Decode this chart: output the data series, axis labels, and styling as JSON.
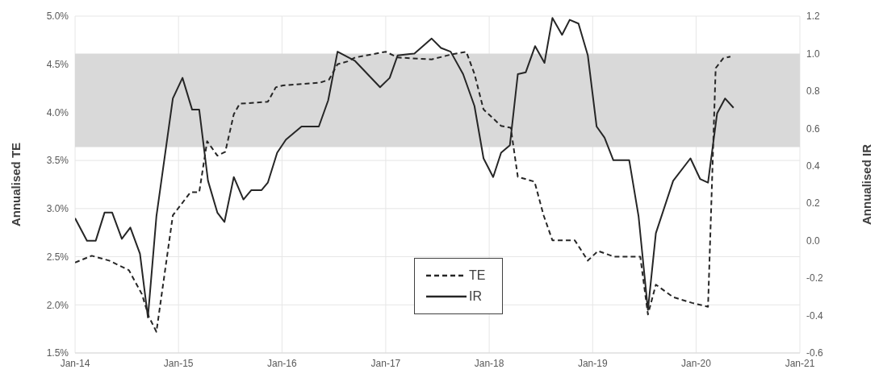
{
  "chart_data": {
    "type": "line",
    "xlabel": null,
    "ylabel": "Annualised TE",
    "y2label": "Annualised IR",
    "xlim": [
      "2014-01",
      "2021-01"
    ],
    "xticks": [
      {
        "value": "2014-01",
        "label": "Jan-14"
      },
      {
        "value": "2015-01",
        "label": "Jan-15"
      },
      {
        "value": "2016-01",
        "label": "Jan-16"
      },
      {
        "value": "2017-01",
        "label": "Jan-17"
      },
      {
        "value": "2018-01",
        "label": "Jan-18"
      },
      {
        "value": "2019-01",
        "label": "Jan-19"
      },
      {
        "value": "2020-01",
        "label": "Jan-20"
      },
      {
        "value": "2021-01",
        "label": "Jan-21"
      }
    ],
    "ylim": [
      1.5,
      5.0
    ],
    "yticks": [
      {
        "value": 1.5,
        "label": "1.5%"
      },
      {
        "value": 2.0,
        "label": "2.0%"
      },
      {
        "value": 2.5,
        "label": "2.5%"
      },
      {
        "value": 3.0,
        "label": "3.0%"
      },
      {
        "value": 3.5,
        "label": "3.5%"
      },
      {
        "value": 4.0,
        "label": "4.0%"
      },
      {
        "value": 4.5,
        "label": "4.5%"
      },
      {
        "value": 5.0,
        "label": "5.0%"
      }
    ],
    "y2lim": [
      -0.6,
      1.2
    ],
    "y2ticks": [
      {
        "value": -0.6,
        "label": "-0.6"
      },
      {
        "value": -0.4,
        "label": "-0.4"
      },
      {
        "value": -0.2,
        "label": "-0.2"
      },
      {
        "value": 0,
        "label": "0.0"
      },
      {
        "value": 0.2,
        "label": "0.2"
      },
      {
        "value": 0.4,
        "label": "0.4"
      },
      {
        "value": 0.6,
        "label": "0.6"
      },
      {
        "value": 0.8,
        "label": "0.8"
      },
      {
        "value": 1.0,
        "label": "1.0"
      },
      {
        "value": 1.2,
        "label": "1.2"
      }
    ],
    "grid": true,
    "legend": "bottom",
    "marker": "none",
    "bands": [
      {
        "axis": "y2",
        "from": 0.5,
        "to": 1.0,
        "color": "#d9d9d9"
      }
    ],
    "series": [
      {
        "name": "TE",
        "color": "#262626",
        "line_style": "dashed",
        "x": [
          "2014-01-01",
          "2014-03-01",
          "2014-05-01",
          "2014-07-10",
          "2014-08-25",
          "2014-09-18",
          "2014-10-15",
          "2014-12-12",
          "2015-02-12",
          "2015-03-15",
          "2015-04-12",
          "2015-05-18",
          "2015-06-15",
          "2015-07-15",
          "2015-08-05",
          "2015-11-12",
          "2015-12-10",
          "2016-01-05",
          "2016-05-15",
          "2016-06-15",
          "2016-07-15",
          "2016-08-20",
          "2016-09-15",
          "2017-01-01",
          "2017-02-12",
          "2017-06-12",
          "2017-08-18",
          "2017-10-12",
          "2017-11-10",
          "2017-12-12",
          "2018-02-12",
          "2018-03-18",
          "2018-04-12",
          "2018-06-10",
          "2018-07-12",
          "2018-08-12",
          "2018-10-30",
          "2018-12-15",
          "2019-01-20",
          "2019-03-18",
          "2019-06-18",
          "2019-07-15",
          "2019-08-12",
          "2019-10-12",
          "2019-12-18",
          "2020-02-12",
          "2020-03-10",
          "2020-04-05",
          "2020-05-01"
        ],
        "values": [
          2.44,
          2.51,
          2.46,
          2.36,
          2.11,
          1.88,
          1.72,
          2.93,
          3.17,
          3.17,
          3.7,
          3.55,
          3.59,
          3.98,
          4.09,
          4.11,
          4.26,
          4.28,
          4.31,
          4.34,
          4.5,
          4.53,
          4.57,
          4.63,
          4.57,
          4.55,
          4.6,
          4.63,
          4.4,
          4.03,
          3.86,
          3.84,
          3.33,
          3.28,
          2.93,
          2.67,
          2.67,
          2.46,
          2.56,
          2.5,
          2.5,
          1.9,
          2.21,
          2.08,
          2.02,
          1.98,
          4.46,
          4.56,
          4.58
        ]
      },
      {
        "name": "IR",
        "color": "#262626",
        "line_style": "solid",
        "axis": "y2",
        "x": [
          "2014-01-01",
          "2014-02-12",
          "2014-03-15",
          "2014-04-15",
          "2014-05-12",
          "2014-06-15",
          "2014-07-15",
          "2014-08-18",
          "2014-09-15",
          "2014-10-15",
          "2014-12-12",
          "2015-01-15",
          "2015-02-18",
          "2015-03-15",
          "2015-04-15",
          "2015-05-18",
          "2015-06-12",
          "2015-07-15",
          "2015-08-18",
          "2015-09-15",
          "2015-10-21",
          "2015-11-12",
          "2015-12-15",
          "2016-01-15",
          "2016-03-10",
          "2016-05-10",
          "2016-06-12",
          "2016-07-15",
          "2016-09-15",
          "2016-12-12",
          "2017-01-15",
          "2017-02-12",
          "2017-04-12",
          "2017-06-12",
          "2017-07-15",
          "2017-08-18",
          "2017-10-01",
          "2017-11-10",
          "2017-12-12",
          "2018-01-15",
          "2018-02-12",
          "2018-03-15",
          "2018-04-12",
          "2018-05-10",
          "2018-06-12",
          "2018-07-15",
          "2018-08-12",
          "2018-09-15",
          "2018-10-12",
          "2018-11-12",
          "2018-12-15",
          "2019-01-15",
          "2019-02-12",
          "2019-03-15",
          "2019-05-10",
          "2019-06-12",
          "2019-07-15",
          "2019-08-12",
          "2019-10-12",
          "2019-12-12",
          "2020-01-15",
          "2020-02-12",
          "2020-03-15",
          "2020-04-12",
          "2020-05-12"
        ],
        "values": [
          0.12,
          0.0,
          0.0,
          0.15,
          0.15,
          0.01,
          0.07,
          -0.07,
          -0.41,
          0.13,
          0.76,
          0.87,
          0.7,
          0.7,
          0.32,
          0.15,
          0.1,
          0.34,
          0.22,
          0.27,
          0.27,
          0.31,
          0.47,
          0.54,
          0.61,
          0.61,
          0.75,
          1.01,
          0.96,
          0.82,
          0.87,
          0.99,
          1.0,
          1.08,
          1.03,
          1.01,
          0.89,
          0.72,
          0.44,
          0.34,
          0.47,
          0.51,
          0.89,
          0.9,
          1.04,
          0.95,
          1.19,
          1.1,
          1.18,
          1.16,
          0.99,
          0.61,
          0.55,
          0.43,
          0.43,
          0.13,
          -0.37,
          0.04,
          0.32,
          0.44,
          0.33,
          0.31,
          0.68,
          0.76,
          0.71
        ]
      }
    ]
  }
}
